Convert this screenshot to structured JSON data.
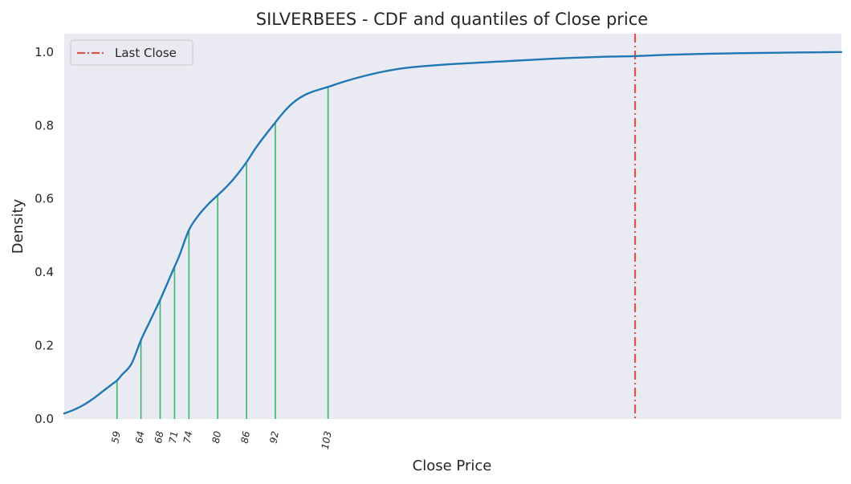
{
  "chart_data": {
    "type": "line",
    "title": "SILVERBEES - CDF and quantiles of Close price",
    "xlabel": "Close Price",
    "ylabel": "Density",
    "xlim": [
      48,
      210
    ],
    "ylim": [
      0,
      1.05
    ],
    "yticks": [
      "0.0",
      "0.2",
      "0.4",
      "0.6",
      "0.8",
      "1.0"
    ],
    "grid": false,
    "legend_position": "top-left",
    "colors": {
      "background": "#eaeaf2",
      "cdf_line": "#1f77b4",
      "quantile_lines": "#3cb371",
      "last_close_line": "#d9534f"
    },
    "series": [
      {
        "x": [
          48,
          50,
          52,
          54,
          56,
          58,
          59,
          60,
          62,
          64,
          66,
          68,
          70,
          71,
          72,
          74,
          76,
          78,
          80,
          82,
          84,
          86,
          88,
          90,
          92,
          94,
          96,
          98,
          100,
          103,
          106,
          110,
          115,
          120,
          130,
          140,
          150,
          160,
          167,
          175,
          185,
          195,
          210
        ],
        "y": [
          0.015,
          0.025,
          0.038,
          0.055,
          0.075,
          0.095,
          0.105,
          0.12,
          0.15,
          0.215,
          0.27,
          0.325,
          0.385,
          0.415,
          0.445,
          0.515,
          0.555,
          0.585,
          0.61,
          0.635,
          0.665,
          0.7,
          0.74,
          0.775,
          0.808,
          0.84,
          0.865,
          0.882,
          0.893,
          0.905,
          0.918,
          0.933,
          0.948,
          0.958,
          0.968,
          0.975,
          0.982,
          0.987,
          0.989,
          0.993,
          0.996,
          0.998,
          1.0
        ]
      }
    ],
    "quantiles": [
      {
        "label": "59",
        "x": 59,
        "y": 0.105
      },
      {
        "label": "64",
        "x": 64,
        "y": 0.215
      },
      {
        "label": "68",
        "x": 68,
        "y": 0.325
      },
      {
        "label": "71",
        "x": 71,
        "y": 0.415
      },
      {
        "label": "74",
        "x": 74,
        "y": 0.515
      },
      {
        "label": "80",
        "x": 80,
        "y": 0.61
      },
      {
        "label": "86",
        "x": 86,
        "y": 0.7
      },
      {
        "label": "92",
        "x": 92,
        "y": 0.808
      },
      {
        "label": "103",
        "x": 103,
        "y": 0.905
      }
    ],
    "last_close": {
      "name": "Last Close",
      "x": 167
    }
  }
}
